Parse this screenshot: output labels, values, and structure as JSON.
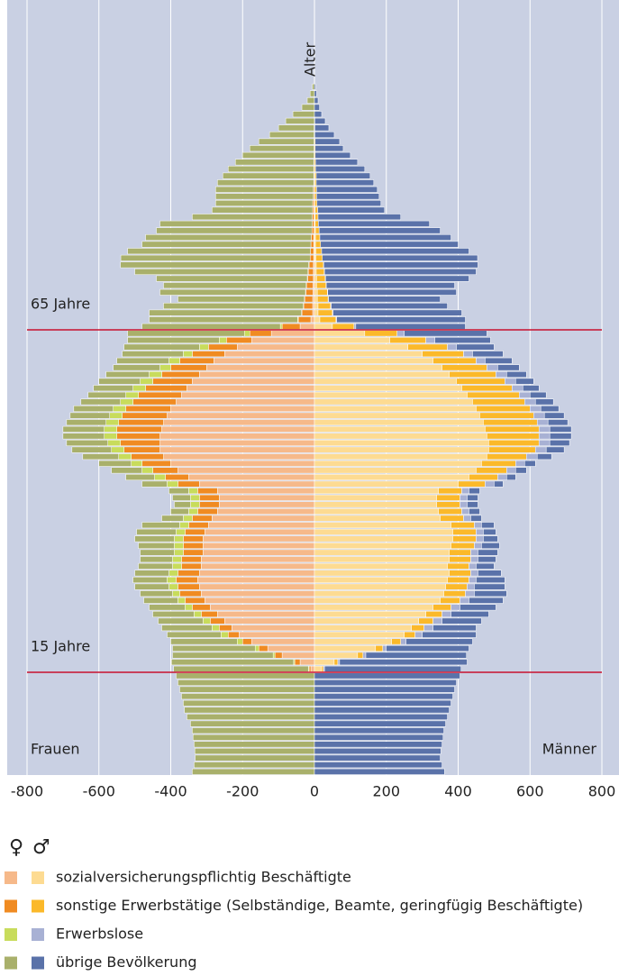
{
  "chart_data": {
    "type": "population-pyramid",
    "axis_label": "Alter",
    "left_label": "Frauen",
    "right_label": "Männer",
    "xlim": [
      -800,
      800
    ],
    "xticks": [
      -800,
      -600,
      -400,
      -200,
      0,
      200,
      400,
      600,
      800
    ],
    "grid": true,
    "reference_lines": [
      {
        "value": 15,
        "label": "15 Jahre"
      },
      {
        "value": 65,
        "label": "65 Jahre"
      }
    ],
    "legend_header": [
      "♀",
      "♂"
    ],
    "series": [
      {
        "name": "sozialversicherungspflichtig Beschäftigte",
        "colors": [
          "#f6b98a",
          "#fddb92"
        ],
        "female": [
          0,
          0,
          0,
          0,
          0,
          0,
          0,
          0,
          0,
          0,
          0,
          0,
          0,
          0,
          0,
          -10,
          -40,
          -90,
          -130,
          -175,
          -210,
          -230,
          -250,
          -270,
          -290,
          -305,
          -315,
          -320,
          -325,
          -320,
          -315,
          -315,
          -310,
          -310,
          -310,
          -305,
          -295,
          -285,
          -270,
          -265,
          -265,
          -270,
          -320,
          -350,
          -380,
          -400,
          -420,
          -430,
          -430,
          -430,
          -425,
          -420,
          -410,
          -400,
          -385,
          -370,
          -355,
          -340,
          -320,
          -300,
          -280,
          -250,
          -215,
          -175,
          -120,
          -40,
          -10,
          -5,
          -5,
          -5,
          -4,
          -4,
          -3,
          -3,
          -3,
          -2,
          -2,
          -2,
          -2,
          -1,
          -1,
          -1,
          -1,
          -1,
          0,
          0,
          0,
          0,
          0,
          0,
          0,
          0,
          0,
          0,
          0,
          0,
          0,
          0,
          0,
          0,
          0
        ],
        "male": [
          0,
          0,
          0,
          0,
          0,
          0,
          0,
          0,
          0,
          0,
          0,
          0,
          0,
          0,
          0,
          20,
          55,
          120,
          170,
          215,
          250,
          270,
          290,
          310,
          330,
          350,
          360,
          365,
          370,
          375,
          370,
          375,
          375,
          380,
          385,
          385,
          380,
          350,
          345,
          340,
          340,
          345,
          400,
          430,
          450,
          465,
          480,
          485,
          485,
          480,
          475,
          470,
          460,
          450,
          440,
          425,
          410,
          395,
          375,
          355,
          330,
          300,
          260,
          210,
          140,
          50,
          15,
          10,
          10,
          8,
          8,
          6,
          6,
          5,
          5,
          4,
          4,
          3,
          3,
          3,
          2,
          2,
          2,
          1,
          1,
          1,
          1,
          1,
          0,
          0,
          0,
          0,
          0,
          0,
          0,
          0,
          0,
          0,
          0,
          0,
          0
        ]
      },
      {
        "name": "sonstige Erwerbstätige (Selbständige, Beamte, geringfügig Beschäftigte)",
        "colors": [
          "#f08b22",
          "#fbb92a"
        ],
        "female": [
          0,
          0,
          0,
          0,
          0,
          0,
          0,
          0,
          0,
          0,
          0,
          0,
          0,
          0,
          0,
          -5,
          -15,
          -20,
          -25,
          -25,
          -30,
          -35,
          -40,
          -45,
          -50,
          -55,
          -60,
          -60,
          -60,
          -60,
          -55,
          -55,
          -55,
          -55,
          -55,
          -55,
          -55,
          -55,
          -55,
          -55,
          -55,
          -55,
          -60,
          -65,
          -70,
          -80,
          -90,
          -100,
          -110,
          -120,
          -125,
          -125,
          -125,
          -125,
          -120,
          -120,
          -115,
          -110,
          -105,
          -100,
          -95,
          -90,
          -80,
          -70,
          -60,
          -50,
          -35,
          -30,
          -25,
          -22,
          -20,
          -18,
          -16,
          -14,
          -12,
          -10,
          -9,
          -8,
          -7,
          -6,
          -5,
          -5,
          -4,
          -4,
          -3,
          -3,
          -2,
          -2,
          -2,
          -2,
          -1,
          -1,
          -1,
          -1,
          -1,
          0,
          0,
          0,
          0,
          0,
          0
        ],
        "male": [
          0,
          0,
          0,
          0,
          0,
          0,
          0,
          0,
          0,
          0,
          0,
          0,
          0,
          0,
          0,
          5,
          10,
          15,
          20,
          25,
          30,
          35,
          40,
          45,
          50,
          55,
          60,
          60,
          60,
          60,
          60,
          60,
          60,
          65,
          65,
          65,
          65,
          65,
          65,
          65,
          65,
          65,
          75,
          80,
          85,
          95,
          110,
          130,
          140,
          145,
          150,
          150,
          150,
          150,
          145,
          145,
          140,
          135,
          130,
          125,
          120,
          115,
          110,
          100,
          90,
          60,
          45,
          40,
          35,
          30,
          28,
          26,
          24,
          22,
          20,
          18,
          16,
          14,
          12,
          10,
          9,
          8,
          7,
          6,
          5,
          5,
          4,
          4,
          3,
          3,
          2,
          2,
          2,
          1,
          1,
          1,
          0,
          0,
          0,
          0,
          0
        ]
      },
      {
        "name": "Erwerbslose",
        "colors": [
          "#c8dc5c",
          "#a8b1d4"
        ],
        "female": [
          0,
          0,
          0,
          0,
          0,
          0,
          0,
          0,
          0,
          0,
          0,
          0,
          0,
          0,
          0,
          -2,
          -3,
          -5,
          -10,
          -15,
          -20,
          -20,
          -20,
          -20,
          -20,
          -20,
          -20,
          -25,
          -25,
          -25,
          -25,
          -25,
          -25,
          -25,
          -25,
          -25,
          -25,
          -25,
          -25,
          -25,
          -25,
          -25,
          -30,
          -30,
          -30,
          -30,
          -35,
          -35,
          -35,
          -35,
          -35,
          -35,
          -35,
          -35,
          -35,
          -35,
          -35,
          -35,
          -35,
          -30,
          -30,
          -25,
          -25,
          -20,
          -15,
          -5,
          -2,
          -1,
          -1,
          -1,
          -1,
          -1,
          -1,
          -1,
          -1,
          0,
          0,
          0,
          0,
          0,
          0,
          0,
          0,
          0,
          0,
          0,
          0,
          0,
          0,
          0,
          0,
          0,
          0,
          0,
          0,
          0,
          0,
          0,
          0,
          0,
          0
        ],
        "male": [
          0,
          0,
          0,
          0,
          0,
          0,
          0,
          0,
          0,
          0,
          0,
          0,
          0,
          0,
          0,
          3,
          5,
          8,
          10,
          15,
          20,
          25,
          25,
          25,
          25,
          25,
          25,
          20,
          20,
          20,
          20,
          20,
          20,
          20,
          20,
          20,
          20,
          20,
          20,
          20,
          20,
          20,
          25,
          25,
          25,
          25,
          30,
          30,
          30,
          30,
          30,
          30,
          30,
          30,
          30,
          30,
          30,
          30,
          30,
          30,
          25,
          25,
          25,
          25,
          20,
          5,
          2,
          2,
          2,
          1,
          1,
          1,
          1,
          1,
          1,
          0,
          0,
          0,
          0,
          0,
          0,
          0,
          0,
          0,
          0,
          0,
          0,
          0,
          0,
          0,
          0,
          0,
          0,
          0,
          0,
          0,
          0,
          0,
          0,
          0,
          0
        ]
      },
      {
        "name": "übrige Bevölkerung",
        "colors": [
          "#a9b06b",
          "#5a72a9"
        ],
        "female": [
          -340,
          -335,
          -332,
          -333,
          -335,
          -338,
          -340,
          -345,
          -355,
          -362,
          -365,
          -370,
          -375,
          -380,
          -385,
          -375,
          -340,
          -280,
          -230,
          -185,
          -150,
          -140,
          -125,
          -115,
          -100,
          -95,
          -90,
          -95,
          -95,
          -95,
          -95,
          -90,
          -95,
          -100,
          -110,
          -110,
          -105,
          -60,
          -50,
          -45,
          -50,
          -55,
          -70,
          -80,
          -85,
          -90,
          -100,
          -110,
          -115,
          -115,
          -115,
          -110,
          -110,
          -110,
          -110,
          -105,
          -110,
          -115,
          -120,
          -130,
          -145,
          -170,
          -210,
          -255,
          -325,
          -385,
          -413,
          -424,
          -389,
          -352,
          -405,
          -397,
          -420,
          -482,
          -524,
          -527,
          -509,
          -470,
          -461,
          -433,
          -424,
          -334,
          -280,
          -270,
          -272,
          -272,
          -268,
          -253,
          -238,
          -218,
          -199,
          -179,
          -154,
          -124,
          -99,
          -80,
          -60,
          -35,
          -20,
          -12,
          -6
        ],
        "male": [
          362,
          355,
          350,
          352,
          355,
          358,
          360,
          365,
          370,
          375,
          380,
          385,
          390,
          395,
          405,
          380,
          355,
          280,
          230,
          185,
          150,
          120,
          110,
          105,
          100,
          95,
          90,
          85,
          80,
          65,
          50,
          50,
          55,
          50,
          40,
          35,
          35,
          30,
          30,
          30,
          30,
          30,
          25,
          25,
          30,
          30,
          40,
          50,
          55,
          60,
          60,
          55,
          55,
          50,
          50,
          45,
          45,
          50,
          55,
          60,
          75,
          85,
          105,
          155,
          230,
          305,
          358,
          358,
          323,
          311,
          358,
          357,
          399,
          422,
          429,
          432,
          410,
          383,
          365,
          337,
          309,
          230,
          186,
          178,
          174,
          169,
          160,
          150,
          137,
          117,
          98,
          78,
          68,
          54,
          39,
          29,
          20,
          14,
          10,
          6,
          3
        ]
      }
    ]
  }
}
